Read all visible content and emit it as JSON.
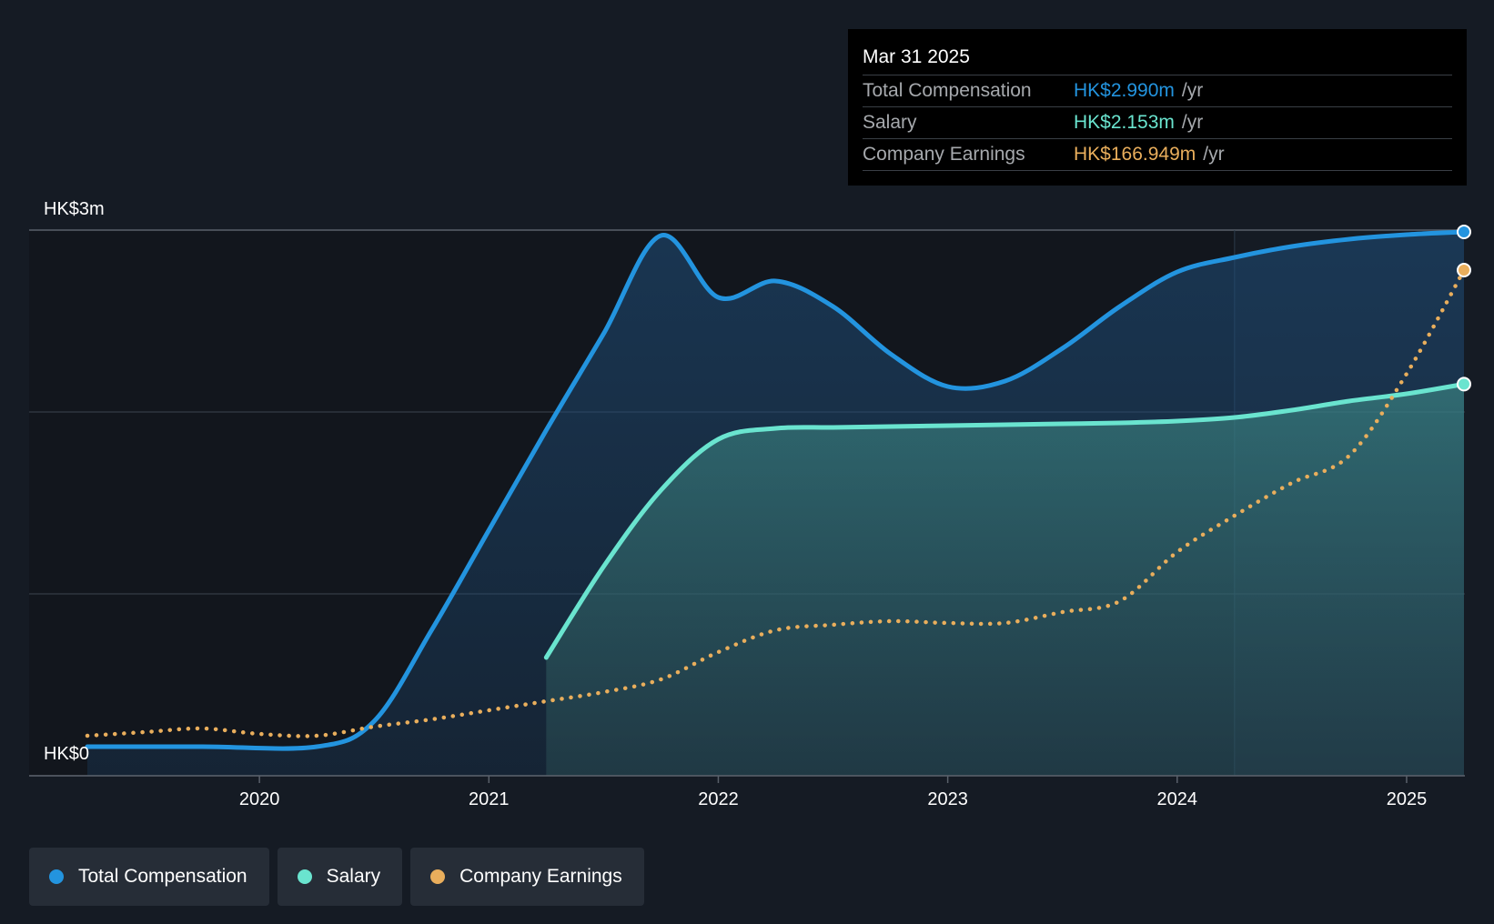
{
  "chart_data": {
    "type": "line",
    "y_axis": {
      "top_label": "HK$3m",
      "bottom_label": "HK$0",
      "ylim": [
        0,
        3.0
      ],
      "grid": true
    },
    "x_axis": {
      "tick_labels": [
        "2020",
        "2021",
        "2022",
        "2023",
        "2024",
        "2025"
      ],
      "xlim": [
        2019.25,
        2025.25
      ]
    },
    "forecast_shade_start": 2024.25,
    "series": [
      {
        "name": "Total Compensation",
        "color": "#2394df",
        "style": "solid-area",
        "x": [
          2019.25,
          2019.75,
          2020.25,
          2020.5,
          2020.75,
          2021.0,
          2021.25,
          2021.5,
          2021.75,
          2022.0,
          2022.25,
          2022.5,
          2022.75,
          2023.0,
          2023.25,
          2023.5,
          2023.75,
          2024.0,
          2024.25,
          2024.5,
          2024.75,
          2025.0,
          2025.25
        ],
        "values": [
          0.16,
          0.16,
          0.16,
          0.3,
          0.8,
          1.35,
          1.9,
          2.43,
          2.97,
          2.63,
          2.72,
          2.58,
          2.32,
          2.14,
          2.17,
          2.35,
          2.58,
          2.77,
          2.85,
          2.91,
          2.95,
          2.975,
          2.99
        ]
      },
      {
        "name": "Salary",
        "color": "#6ae4cf",
        "style": "solid-area",
        "x": [
          2021.25,
          2021.5,
          2021.75,
          2022.0,
          2022.25,
          2022.5,
          2022.75,
          2023.0,
          2023.25,
          2023.5,
          2023.75,
          2024.0,
          2024.25,
          2024.5,
          2024.75,
          2025.0,
          2025.25
        ],
        "values": [
          0.65,
          1.15,
          1.57,
          1.85,
          1.91,
          1.915,
          1.92,
          1.925,
          1.93,
          1.935,
          1.94,
          1.95,
          1.97,
          2.01,
          2.06,
          2.1,
          2.153
        ]
      },
      {
        "name": "Company Earnings",
        "color": "#e9ae5c",
        "style": "dotted",
        "x": [
          2019.25,
          2019.5,
          2019.75,
          2020.0,
          2020.25,
          2020.5,
          2020.75,
          2021.0,
          2021.25,
          2021.5,
          2021.75,
          2022.0,
          2022.25,
          2022.5,
          2022.75,
          2023.0,
          2023.25,
          2023.5,
          2023.75,
          2024.0,
          2024.25,
          2024.5,
          2024.75,
          2025.0,
          2025.25
        ],
        "values": [
          0.22,
          0.24,
          0.26,
          0.23,
          0.22,
          0.27,
          0.31,
          0.36,
          0.41,
          0.46,
          0.53,
          0.68,
          0.8,
          0.83,
          0.85,
          0.84,
          0.84,
          0.9,
          0.96,
          1.23,
          1.43,
          1.61,
          1.76,
          2.21,
          2.78
        ]
      }
    ]
  },
  "tooltip": {
    "date": "Mar 31 2025",
    "rows": [
      {
        "label": "Total Compensation",
        "value": "HK$2.990m",
        "unit": "/yr",
        "color": "#2394df"
      },
      {
        "label": "Salary",
        "value": "HK$2.153m",
        "unit": "/yr",
        "color": "#6ae4cf"
      },
      {
        "label": "Company Earnings",
        "value": "HK$166.949m",
        "unit": "/yr",
        "color": "#e9ae5c"
      }
    ]
  },
  "legend": [
    {
      "label": "Total Compensation",
      "color": "#2394df"
    },
    {
      "label": "Salary",
      "color": "#6ae4cf"
    },
    {
      "label": "Company Earnings",
      "color": "#e9ae5c"
    }
  ]
}
